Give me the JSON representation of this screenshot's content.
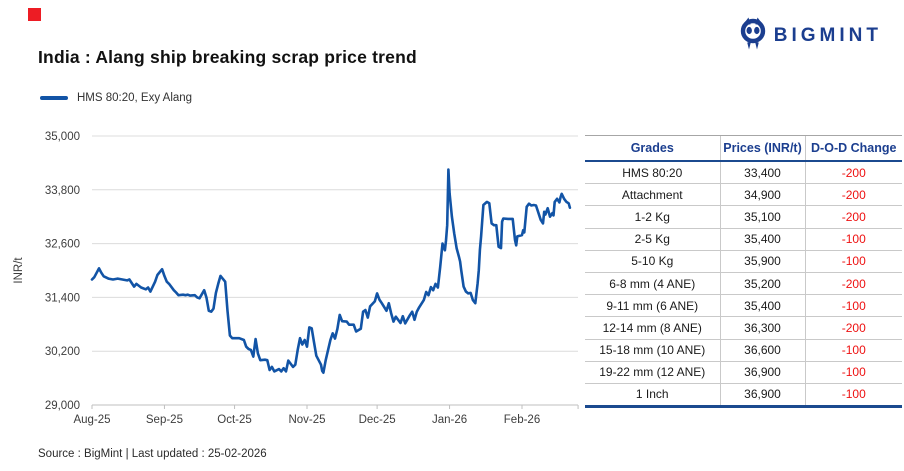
{
  "decor": {
    "red_square_color": "#ED1C24"
  },
  "brand": {
    "name": "BIGMINT",
    "color": "#1B3E8F"
  },
  "header": {
    "title": "India : Alang ship breaking scrap price trend"
  },
  "legend": {
    "label": "HMS 80:20, Exy Alang",
    "color": "#1254A6"
  },
  "source_note": "Source : BigMint | Last updated : 25-02-2026",
  "chart_data": {
    "type": "line",
    "title": "India : Alang ship breaking scrap price trend",
    "xlabel": "",
    "ylabel": "INR/t",
    "ylim": [
      29000,
      35000
    ],
    "yticks": [
      29000,
      30200,
      31400,
      32600,
      33800,
      35000
    ],
    "grid": true,
    "legend_position": "top-left",
    "x_unit": "days since 01-Aug-2025",
    "xticks": [
      {
        "t": 0,
        "label": "Aug-25"
      },
      {
        "t": 31,
        "label": "Sep-25"
      },
      {
        "t": 61,
        "label": "Oct-25"
      },
      {
        "t": 92,
        "label": "Nov-25"
      },
      {
        "t": 122,
        "label": "Dec-25"
      },
      {
        "t": 153,
        "label": "Jan-26"
      },
      {
        "t": 184,
        "label": "Feb-26"
      },
      {
        "t": 208,
        "label": ""
      }
    ],
    "series": [
      {
        "name": "HMS 80:20, Exy Alang",
        "color": "#1254A6",
        "points": [
          [
            0,
            31800
          ],
          [
            1,
            31850
          ],
          [
            3,
            32050
          ],
          [
            4,
            31950
          ],
          [
            5,
            31870
          ],
          [
            7,
            31820
          ],
          [
            9,
            31800
          ],
          [
            11,
            31820
          ],
          [
            13,
            31800
          ],
          [
            15,
            31780
          ],
          [
            16,
            31800
          ],
          [
            18,
            31640
          ],
          [
            19,
            31700
          ],
          [
            21,
            31620
          ],
          [
            23,
            31580
          ],
          [
            24,
            31620
          ],
          [
            25,
            31530
          ],
          [
            27,
            31750
          ],
          [
            28,
            31900
          ],
          [
            30,
            32030
          ],
          [
            31,
            31880
          ],
          [
            32,
            31750
          ],
          [
            33,
            31700
          ],
          [
            35,
            31560
          ],
          [
            36,
            31510
          ],
          [
            37,
            31450
          ],
          [
            39,
            31460
          ],
          [
            40,
            31450
          ],
          [
            41,
            31460
          ],
          [
            42,
            31440
          ],
          [
            44,
            31450
          ],
          [
            45,
            31400
          ],
          [
            46,
            31380
          ],
          [
            48,
            31560
          ],
          [
            49,
            31390
          ],
          [
            50,
            31100
          ],
          [
            51,
            31080
          ],
          [
            52,
            31150
          ],
          [
            53,
            31500
          ],
          [
            54,
            31700
          ],
          [
            55,
            31880
          ],
          [
            57,
            31750
          ],
          [
            58,
            31100
          ],
          [
            59,
            30550
          ],
          [
            60,
            30490
          ],
          [
            62,
            30490
          ],
          [
            63,
            30490
          ],
          [
            65,
            30450
          ],
          [
            66,
            30300
          ],
          [
            67,
            30250
          ],
          [
            68,
            30230
          ],
          [
            69,
            30080
          ],
          [
            70,
            30470
          ],
          [
            71,
            30150
          ],
          [
            72,
            30000
          ],
          [
            74,
            30010
          ],
          [
            75,
            30000
          ],
          [
            76,
            29780
          ],
          [
            77,
            29850
          ],
          [
            78,
            29750
          ],
          [
            80,
            29800
          ],
          [
            81,
            29750
          ],
          [
            82,
            29820
          ],
          [
            83,
            29750
          ],
          [
            84,
            29990
          ],
          [
            86,
            29850
          ],
          [
            87,
            29900
          ],
          [
            88,
            30230
          ],
          [
            89,
            30490
          ],
          [
            90,
            30350
          ],
          [
            91,
            30450
          ],
          [
            92,
            30300
          ],
          [
            93,
            30730
          ],
          [
            94,
            30710
          ],
          [
            95,
            30400
          ],
          [
            96,
            30100
          ],
          [
            98,
            29900
          ],
          [
            98.5,
            29760
          ],
          [
            99,
            29720
          ],
          [
            100,
            30000
          ],
          [
            102,
            30450
          ],
          [
            103,
            30600
          ],
          [
            104,
            30480
          ],
          [
            105,
            30700
          ],
          [
            106,
            31010
          ],
          [
            107,
            30870
          ],
          [
            109,
            30860
          ],
          [
            110,
            30790
          ],
          [
            111,
            30790
          ],
          [
            112,
            30790
          ],
          [
            113,
            30640
          ],
          [
            115,
            30700
          ],
          [
            116,
            31080
          ],
          [
            117,
            31120
          ],
          [
            118,
            30950
          ],
          [
            119,
            31200
          ],
          [
            121,
            31310
          ],
          [
            122,
            31490
          ],
          [
            123,
            31350
          ],
          [
            124,
            31270
          ],
          [
            126,
            31100
          ],
          [
            127,
            31270
          ],
          [
            128,
            31050
          ],
          [
            129,
            30860
          ],
          [
            130,
            30970
          ],
          [
            132,
            30830
          ],
          [
            133,
            30980
          ],
          [
            134,
            30820
          ],
          [
            136,
            31000
          ],
          [
            137,
            31080
          ],
          [
            138,
            30900
          ],
          [
            139,
            31080
          ],
          [
            140,
            31180
          ],
          [
            142,
            31340
          ],
          [
            143,
            31520
          ],
          [
            144,
            31450
          ],
          [
            145,
            31630
          ],
          [
            146,
            31560
          ],
          [
            147,
            31700
          ],
          [
            148,
            31620
          ],
          [
            149,
            32080
          ],
          [
            150,
            32600
          ],
          [
            151,
            32450
          ],
          [
            151.5,
            32670
          ],
          [
            152,
            33010
          ],
          [
            152.5,
            34250
          ],
          [
            153,
            33720
          ],
          [
            154,
            33200
          ],
          [
            155,
            32830
          ],
          [
            156,
            32500
          ],
          [
            157,
            32310
          ],
          [
            157.5,
            32200
          ],
          [
            158,
            32010
          ],
          [
            159,
            31640
          ],
          [
            160,
            31530
          ],
          [
            161,
            31490
          ],
          [
            162,
            31500
          ],
          [
            163,
            31340
          ],
          [
            164,
            31270
          ],
          [
            165,
            31710
          ],
          [
            165.5,
            32010
          ],
          [
            166,
            32460
          ],
          [
            166.5,
            32760
          ],
          [
            167,
            33130
          ],
          [
            167.5,
            33460
          ],
          [
            169,
            33530
          ],
          [
            170,
            33500
          ],
          [
            171,
            33050
          ],
          [
            172,
            33010
          ],
          [
            173,
            33010
          ],
          [
            174,
            32530
          ],
          [
            175,
            32500
          ],
          [
            175.5,
            33090
          ],
          [
            176,
            33160
          ],
          [
            178,
            33150
          ],
          [
            179,
            33150
          ],
          [
            180,
            33150
          ],
          [
            181,
            32680
          ],
          [
            181.5,
            32560
          ],
          [
            182,
            32760
          ],
          [
            184,
            32790
          ],
          [
            184.5,
            32900
          ],
          [
            185,
            32850
          ],
          [
            186,
            33420
          ],
          [
            187,
            33490
          ],
          [
            188,
            33450
          ],
          [
            189,
            33460
          ],
          [
            190,
            33450
          ],
          [
            192,
            33130
          ],
          [
            193,
            33050
          ],
          [
            193.5,
            33310
          ],
          [
            194,
            33250
          ],
          [
            195,
            33390
          ],
          [
            196,
            33200
          ],
          [
            197,
            33280
          ],
          [
            197.5,
            33230
          ],
          [
            198,
            33530
          ],
          [
            199,
            33600
          ],
          [
            200,
            33520
          ],
          [
            200.5,
            33640
          ],
          [
            201,
            33710
          ],
          [
            202,
            33600
          ],
          [
            203,
            33530
          ],
          [
            204,
            33500
          ],
          [
            204.5,
            33400
          ]
        ]
      }
    ]
  },
  "table": {
    "headers": [
      "Grades",
      "Prices (INR/t)",
      "D-O-D Change"
    ],
    "header_color": "#1B3E8F",
    "change_color": "#EE1111",
    "rows": [
      {
        "grade": "HMS 80:20",
        "price": "33,400",
        "change": "-200"
      },
      {
        "grade": "Attachment",
        "price": "34,900",
        "change": "-200"
      },
      {
        "grade": "1-2 Kg",
        "price": "35,100",
        "change": "-200"
      },
      {
        "grade": "2-5 Kg",
        "price": "35,400",
        "change": "-100"
      },
      {
        "grade": "5-10 Kg",
        "price": "35,900",
        "change": "-100"
      },
      {
        "grade": "6-8 mm (4 ANE)",
        "price": "35,200",
        "change": "-200"
      },
      {
        "grade": "9-11 mm (6 ANE)",
        "price": "35,400",
        "change": "-100"
      },
      {
        "grade": "12-14 mm (8 ANE)",
        "price": "36,300",
        "change": "-200"
      },
      {
        "grade": "15-18 mm (10 ANE)",
        "price": "36,600",
        "change": "-100"
      },
      {
        "grade": "19-22 mm (12 ANE)",
        "price": "36,900",
        "change": "-100"
      },
      {
        "grade": "1 Inch",
        "price": "36,900",
        "change": "-100"
      }
    ]
  }
}
